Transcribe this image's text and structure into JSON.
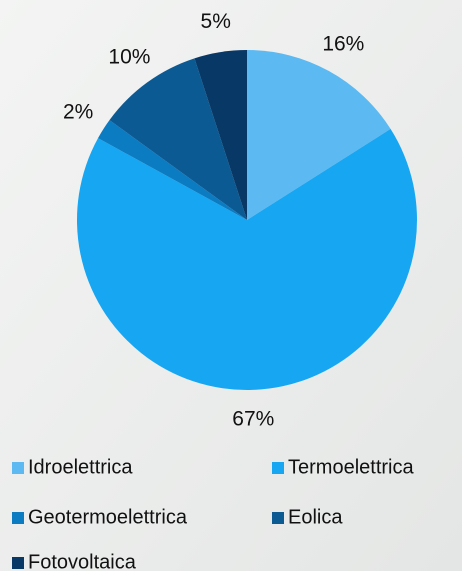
{
  "chart_data": {
    "type": "pie",
    "categories": [
      "Idroelettrica",
      "Termoelettrica",
      "Geotermoelettrica",
      "Eolica",
      "Fotovoltaica"
    ],
    "values": [
      16,
      67,
      2,
      10,
      5
    ],
    "value_labels": [
      "16%",
      "67%",
      "2%",
      "10%",
      "5%"
    ],
    "colors": [
      "#5cb9f2",
      "#17a6f2",
      "#0b7bc2",
      "#0b5a93",
      "#083866"
    ]
  }
}
